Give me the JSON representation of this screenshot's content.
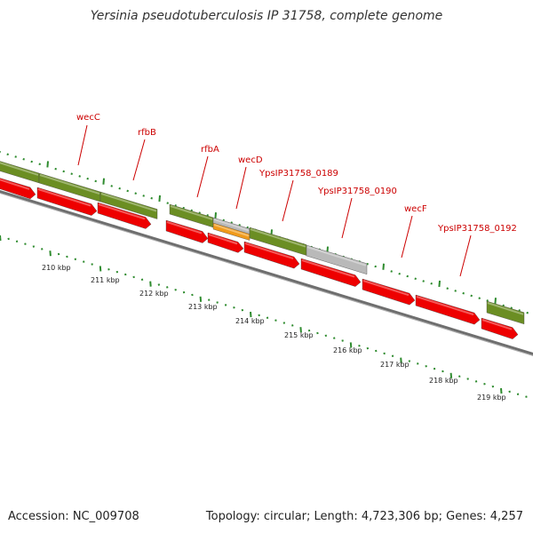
{
  "title": "Yersinia pseudotuberculosis IP 31758, complete genome",
  "footer": {
    "accession": "Accession: NC_009708",
    "stats": "Topology: circular; Length: 4,723,306 bp; Genes: 4,257"
  },
  "colors": {
    "cds": "#ee0000",
    "gene": "#6b8e23",
    "gene_light": "#9aba58",
    "gray_feature": "#b9b9b9",
    "orange_feature": "#f09a1a",
    "backbone": "#808080",
    "tick": "#2e8b2e",
    "label": "#cc0000"
  },
  "gene_labels": [
    "wecC",
    "rfbB",
    "rfbA",
    "wecD",
    "YpsIP31758_0189",
    "YpsIP31758_0190",
    "wecF",
    "YpsIP31758_0192"
  ],
  "scale_labels": [
    "210 kbp",
    "211 kbp",
    "212 kbp",
    "213 kbp",
    "214 kbp",
    "215 kbp",
    "216 kbp",
    "217 kbp",
    "218 kbp",
    "219 kbp"
  ]
}
